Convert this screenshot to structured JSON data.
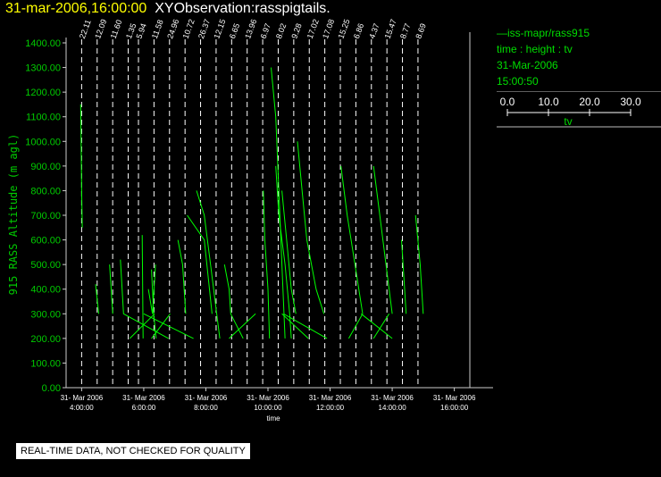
{
  "header": {
    "datetime": "31-mar-2006,16:00:00",
    "observation": "XYObservation:rasspigtails."
  },
  "legend": {
    "series_label": "iss-mapr/rass915",
    "variables": "time : height : tv",
    "date": "31-Mar-2006",
    "time": "15:00:50",
    "scale_ticks": [
      "0.0",
      "10.0",
      "20.0",
      "30.0"
    ],
    "scale_label": "tv"
  },
  "notice": "REAL-TIME DATA, NOT CHECKED FOR QUALITY",
  "colors": {
    "data": "#00ff00",
    "axis_text": "#00cc00",
    "title": "#ffff00",
    "background": "#000000"
  },
  "chart_data": {
    "type": "line",
    "ylabel": "915 RASS Altitude (m agl)",
    "xlabel": "time",
    "ylim": [
      0,
      1400
    ],
    "xlim": [
      3.5,
      16.5
    ],
    "yticks": [
      "0.00",
      "100.00",
      "200.00",
      "300.00",
      "400.00",
      "500.00",
      "600.00",
      "700.00",
      "800.00",
      "900.00",
      "1000.00",
      "1100.00",
      "1200.00",
      "1300.00",
      "1400.00"
    ],
    "xticks": [
      {
        "x": 4,
        "date": "31- Mar 2006",
        "time": "4:00:00"
      },
      {
        "x": 6,
        "date": "31- Mar 2006",
        "time": "6:00:00"
      },
      {
        "x": 8,
        "date": "31- Mar 2006",
        "time": "8:00:00"
      },
      {
        "x": 10,
        "date": "31- Mar 2006",
        "time": "10:00:00"
      },
      {
        "x": 12,
        "date": "31- Mar 2006",
        "time": "12:00:00"
      },
      {
        "x": 14,
        "date": "31- Mar 2006",
        "time": "14:00:00"
      },
      {
        "x": 16,
        "date": "31- Mar 2006",
        "time": "16:00:00"
      }
    ],
    "markers": [
      {
        "x": 4.0,
        "label": "22.11"
      },
      {
        "x": 4.5,
        "label": "12.09"
      },
      {
        "x": 5.0,
        "label": "11.60"
      },
      {
        "x": 5.5,
        "label": "1.35"
      },
      {
        "x": 5.83,
        "label": "5.94"
      },
      {
        "x": 6.33,
        "label": "11.58"
      },
      {
        "x": 6.83,
        "label": "24.96"
      },
      {
        "x": 7.33,
        "label": "10.72"
      },
      {
        "x": 7.83,
        "label": "26.37"
      },
      {
        "x": 8.33,
        "label": "12.15"
      },
      {
        "x": 8.83,
        "label": "6.65"
      },
      {
        "x": 9.33,
        "label": "13.96"
      },
      {
        "x": 9.83,
        "label": "6.97"
      },
      {
        "x": 10.33,
        "label": "8.02"
      },
      {
        "x": 10.83,
        "label": "9.28"
      },
      {
        "x": 11.33,
        "label": "17.02"
      },
      {
        "x": 11.83,
        "label": "17.08"
      },
      {
        "x": 12.33,
        "label": "15.25"
      },
      {
        "x": 12.83,
        "label": "6.86"
      },
      {
        "x": 13.33,
        "label": "4.37"
      },
      {
        "x": 13.83,
        "label": "15.47"
      },
      {
        "x": 14.33,
        "label": "8.77"
      },
      {
        "x": 14.83,
        "label": "8.69"
      }
    ],
    "series": [
      {
        "points": [
          [
            3.97,
            1150
          ],
          [
            3.99,
            950
          ],
          [
            4.0,
            800
          ],
          [
            4.02,
            650
          ]
        ]
      },
      {
        "points": [
          [
            4.45,
            420
          ],
          [
            4.55,
            300
          ]
        ]
      },
      {
        "points": [
          [
            4.9,
            500
          ],
          [
            5.0,
            300
          ]
        ]
      },
      {
        "points": [
          [
            5.25,
            520
          ],
          [
            5.35,
            300
          ],
          [
            6.8,
            200
          ]
        ]
      },
      {
        "points": [
          [
            5.55,
            200
          ],
          [
            6.35,
            300
          ]
        ]
      },
      {
        "points": [
          [
            5.95,
            620
          ],
          [
            5.98,
            200
          ]
        ]
      },
      {
        "points": [
          [
            6.0,
            300
          ],
          [
            7.6,
            200
          ]
        ]
      },
      {
        "points": [
          [
            6.15,
            400
          ],
          [
            6.28,
            300
          ],
          [
            6.38,
            500
          ]
        ]
      },
      {
        "points": [
          [
            6.25,
            480
          ],
          [
            6.32,
            300
          ],
          [
            6.4,
            200
          ]
        ]
      },
      {
        "points": [
          [
            6.25,
            200
          ],
          [
            6.85,
            300
          ]
        ]
      },
      {
        "points": [
          [
            7.1,
            600
          ],
          [
            7.25,
            500
          ],
          [
            7.35,
            300
          ]
        ]
      },
      {
        "points": [
          [
            7.4,
            700
          ],
          [
            7.95,
            600
          ],
          [
            8.2,
            300
          ]
        ]
      },
      {
        "points": [
          [
            7.7,
            800
          ],
          [
            7.95,
            700
          ],
          [
            8.15,
            500
          ],
          [
            8.35,
            300
          ],
          [
            8.45,
            200
          ]
        ]
      },
      {
        "points": [
          [
            8.6,
            500
          ],
          [
            8.75,
            400
          ],
          [
            8.8,
            300
          ],
          [
            9.2,
            200
          ]
        ]
      },
      {
        "points": [
          [
            8.75,
            200
          ],
          [
            9.6,
            300
          ]
        ]
      },
      {
        "points": [
          [
            9.85,
            800
          ],
          [
            9.9,
            600
          ],
          [
            10.0,
            400
          ],
          [
            10.05,
            200
          ]
        ]
      },
      {
        "points": [
          [
            10.1,
            1300
          ],
          [
            10.25,
            1100
          ],
          [
            10.35,
            800
          ],
          [
            10.45,
            500
          ],
          [
            10.55,
            200
          ]
        ]
      },
      {
        "points": [
          [
            10.25,
            900
          ],
          [
            10.35,
            700
          ],
          [
            10.55,
            500
          ],
          [
            10.7,
            300
          ],
          [
            10.75,
            200
          ]
        ]
      },
      {
        "points": [
          [
            10.45,
            800
          ],
          [
            10.6,
            600
          ],
          [
            10.75,
            400
          ],
          [
            10.9,
            300
          ]
        ]
      },
      {
        "points": [
          [
            10.45,
            300
          ],
          [
            11.3,
            200
          ]
        ]
      },
      {
        "points": [
          [
            10.5,
            300
          ],
          [
            11.9,
            200
          ]
        ]
      },
      {
        "points": [
          [
            10.95,
            1000
          ],
          [
            11.1,
            800
          ],
          [
            11.25,
            600
          ],
          [
            11.55,
            400
          ],
          [
            11.8,
            300
          ]
        ]
      },
      {
        "points": [
          [
            12.35,
            900
          ],
          [
            12.55,
            700
          ],
          [
            12.8,
            500
          ],
          [
            13.05,
            300
          ]
        ]
      },
      {
        "points": [
          [
            12.6,
            200
          ],
          [
            13.05,
            300
          ]
        ]
      },
      {
        "points": [
          [
            13.0,
            300
          ],
          [
            14.0,
            200
          ]
        ]
      },
      {
        "points": [
          [
            13.4,
            900
          ],
          [
            13.6,
            700
          ],
          [
            13.8,
            500
          ],
          [
            14.0,
            300
          ]
        ]
      },
      {
        "points": [
          [
            13.4,
            200
          ],
          [
            13.9,
            300
          ]
        ]
      },
      {
        "points": [
          [
            14.3,
            600
          ],
          [
            14.4,
            400
          ],
          [
            14.45,
            300
          ]
        ]
      },
      {
        "points": [
          [
            14.75,
            700
          ],
          [
            14.9,
            500
          ],
          [
            15.0,
            300
          ]
        ]
      }
    ]
  }
}
